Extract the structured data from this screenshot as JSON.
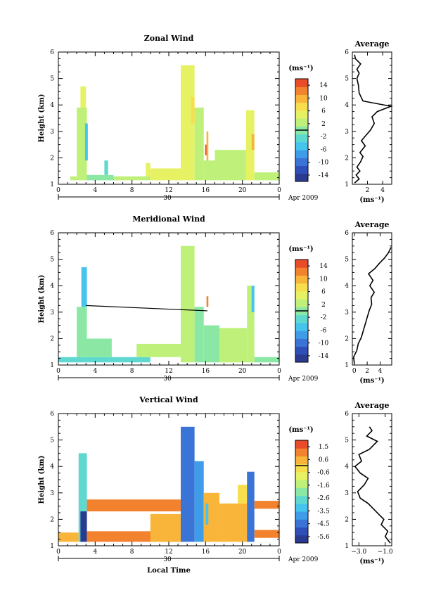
{
  "figure": {
    "x_axis_label": "Local Time",
    "date_label": "Apr 2009",
    "day_label": "30",
    "y_axis_label": "Height (km)",
    "unit_label": "(ms⁻¹)",
    "average_title": "Average"
  },
  "chart_data": [
    {
      "type": "heatmap",
      "title": "Zonal Wind",
      "xlabel": "",
      "ylabel": "Height (km)",
      "x_ticks": [
        "0",
        "4",
        "8",
        "12",
        "16",
        "20",
        "0"
      ],
      "x_tick_values": [
        0,
        4,
        8,
        12,
        16,
        20,
        24
      ],
      "y_ticks": [
        "1",
        "2",
        "3",
        "4",
        "5",
        "6"
      ],
      "xlim": [
        0,
        24
      ],
      "ylim": [
        1,
        6
      ],
      "colorbar": {
        "label": "(ms⁻¹)",
        "ticks": [
          "14",
          "10",
          "6",
          "2",
          "-2",
          "-6",
          "-10",
          "-14"
        ],
        "range": [
          -16,
          16
        ]
      },
      "blocks": [
        {
          "t0": 1.3,
          "t1": 2.0,
          "h0": 1.15,
          "h1": 1.3,
          "v": 2
        },
        {
          "t0": 2.0,
          "t1": 3.1,
          "h0": 1.15,
          "h1": 3.9,
          "v": 3
        },
        {
          "t0": 2.4,
          "t1": 3.0,
          "h0": 3.9,
          "h1": 4.7,
          "v": 4
        },
        {
          "t0": 2.9,
          "t1": 3.2,
          "h0": 1.9,
          "h1": 3.3,
          "v": -6
        },
        {
          "t0": 3.1,
          "t1": 6.0,
          "h0": 1.15,
          "h1": 1.35,
          "v": 1
        },
        {
          "t0": 5.0,
          "t1": 5.4,
          "h0": 1.35,
          "h1": 1.9,
          "v": -2
        },
        {
          "t0": 6.0,
          "t1": 10.0,
          "h0": 1.15,
          "h1": 1.3,
          "v": 3
        },
        {
          "t0": 9.5,
          "t1": 10.0,
          "h0": 1.3,
          "h1": 1.8,
          "v": 4
        },
        {
          "t0": 10.0,
          "t1": 13.3,
          "h0": 1.15,
          "h1": 1.6,
          "v": 4
        },
        {
          "t0": 13.3,
          "t1": 14.8,
          "h0": 1.15,
          "h1": 5.5,
          "v": 4
        },
        {
          "t0": 14.8,
          "t1": 15.8,
          "h0": 1.15,
          "h1": 3.9,
          "v": 3
        },
        {
          "t0": 14.4,
          "t1": 14.8,
          "h0": 3.3,
          "h1": 4.3,
          "v": 7
        },
        {
          "t0": 15.8,
          "t1": 17.0,
          "h0": 1.15,
          "h1": 1.9,
          "v": 3
        },
        {
          "t0": 15.95,
          "t1": 16.2,
          "h0": 2.1,
          "h1": 2.5,
          "v": 14
        },
        {
          "t0": 16.1,
          "t1": 16.3,
          "h0": 1.9,
          "h1": 3.0,
          "v": 10
        },
        {
          "t0": 17.0,
          "t1": 20.4,
          "h0": 1.15,
          "h1": 2.3,
          "v": 3
        },
        {
          "t0": 20.4,
          "t1": 21.3,
          "h0": 1.15,
          "h1": 3.8,
          "v": 4
        },
        {
          "t0": 21.0,
          "t1": 21.3,
          "h0": 2.3,
          "h1": 2.9,
          "v": 9
        },
        {
          "t0": 21.3,
          "t1": 24.0,
          "h0": 1.15,
          "h1": 1.45,
          "v": 3
        }
      ],
      "average_profile": {
        "title": "Average",
        "xlabel": "(ms⁻¹)",
        "x_ticks": [
          "2",
          "4"
        ],
        "x_tick_values": [
          2,
          4
        ],
        "xlim": [
          0,
          5.2
        ],
        "ylim": [
          1,
          6
        ],
        "points": [
          [
            0.3,
            1.05
          ],
          [
            0.9,
            1.2
          ],
          [
            0.5,
            1.35
          ],
          [
            1.0,
            1.5
          ],
          [
            0.6,
            1.65
          ],
          [
            1.1,
            1.85
          ],
          [
            1.4,
            2.05
          ],
          [
            1.0,
            2.2
          ],
          [
            1.7,
            2.45
          ],
          [
            1.2,
            2.65
          ],
          [
            1.8,
            2.85
          ],
          [
            2.4,
            3.05
          ],
          [
            2.9,
            3.3
          ],
          [
            2.6,
            3.55
          ],
          [
            3.3,
            3.75
          ],
          [
            5.1,
            3.95
          ],
          [
            1.4,
            4.15
          ],
          [
            0.9,
            4.45
          ],
          [
            0.8,
            4.75
          ],
          [
            0.6,
            5.0
          ],
          [
            0.9,
            5.2
          ],
          [
            0.6,
            5.35
          ],
          [
            1.1,
            5.55
          ],
          [
            0.4,
            5.75
          ],
          [
            0.3,
            5.9
          ]
        ]
      }
    },
    {
      "type": "heatmap",
      "title": "Meridional Wind",
      "xlabel": "",
      "ylabel": "Height (km)",
      "x_ticks": [
        "0",
        "4",
        "8",
        "12",
        "16",
        "20",
        "0"
      ],
      "x_tick_values": [
        0,
        4,
        8,
        12,
        16,
        20,
        24
      ],
      "y_ticks": [
        "1",
        "2",
        "3",
        "4",
        "5",
        "6"
      ],
      "xlim": [
        0,
        24
      ],
      "ylim": [
        1,
        6
      ],
      "colorbar": {
        "label": "(ms⁻¹)",
        "ticks": [
          "14",
          "10",
          "6",
          "2",
          "-2",
          "-6",
          "-10",
          "-14"
        ],
        "range": [
          -16,
          16
        ]
      },
      "blocks": [
        {
          "t0": 0.0,
          "t1": 10.0,
          "h0": 1.1,
          "h1": 1.3,
          "v": -3
        },
        {
          "t0": 2.0,
          "t1": 3.1,
          "h0": 1.3,
          "h1": 3.2,
          "v": -1
        },
        {
          "t0": 2.5,
          "t1": 3.1,
          "h0": 3.2,
          "h1": 4.7,
          "v": -6
        },
        {
          "t0": 3.1,
          "t1": 5.8,
          "h0": 1.3,
          "h1": 2.0,
          "v": 0
        },
        {
          "t0": 8.5,
          "t1": 13.3,
          "h0": 1.3,
          "h1": 1.8,
          "v": 2
        },
        {
          "t0": 13.3,
          "t1": 14.8,
          "h0": 1.1,
          "h1": 5.5,
          "v": 3
        },
        {
          "t0": 14.8,
          "t1": 15.8,
          "h0": 1.1,
          "h1": 3.2,
          "v": 0
        },
        {
          "t0": 15.8,
          "t1": 17.5,
          "h0": 1.1,
          "h1": 2.5,
          "v": 1
        },
        {
          "t0": 16.1,
          "t1": 16.3,
          "h0": 3.2,
          "h1": 3.6,
          "v": 12
        },
        {
          "t0": 17.5,
          "t1": 20.5,
          "h0": 1.1,
          "h1": 2.4,
          "v": 2
        },
        {
          "t0": 20.5,
          "t1": 21.3,
          "h0": 1.1,
          "h1": 4.0,
          "v": 3
        },
        {
          "t0": 21.0,
          "t1": 21.3,
          "h0": 3.0,
          "h1": 4.0,
          "v": -5
        },
        {
          "t0": 21.3,
          "t1": 24.0,
          "h0": 1.1,
          "h1": 1.3,
          "v": -1
        }
      ],
      "trend_line": [
        [
          3.0,
          3.25
        ],
        [
          16.2,
          3.05
        ]
      ],
      "average_profile": {
        "title": "Average",
        "xlabel": "(ms⁻¹)",
        "x_ticks": [
          "0",
          "2",
          "4"
        ],
        "x_tick_values": [
          0,
          2,
          4
        ],
        "xlim": [
          -0.3,
          5.8
        ],
        "ylim": [
          1,
          6
        ],
        "points": [
          [
            0.0,
            1.05
          ],
          [
            -0.1,
            1.3
          ],
          [
            0.4,
            1.55
          ],
          [
            0.6,
            1.8
          ],
          [
            1.1,
            2.05
          ],
          [
            1.4,
            2.3
          ],
          [
            1.7,
            2.55
          ],
          [
            2.0,
            2.8
          ],
          [
            2.3,
            3.05
          ],
          [
            2.7,
            3.3
          ],
          [
            2.6,
            3.55
          ],
          [
            3.1,
            3.75
          ],
          [
            2.4,
            4.0
          ],
          [
            2.9,
            4.2
          ],
          [
            2.2,
            4.45
          ],
          [
            3.2,
            4.65
          ],
          [
            3.9,
            4.85
          ],
          [
            4.7,
            5.05
          ],
          [
            5.3,
            5.25
          ],
          [
            5.7,
            5.45
          ]
        ]
      }
    },
    {
      "type": "heatmap",
      "title": "Vertical Wind",
      "xlabel": "Local Time",
      "ylabel": "Height (km)",
      "x_ticks": [
        "0",
        "4",
        "8",
        "12",
        "16",
        "20",
        "0"
      ],
      "x_tick_values": [
        0,
        4,
        8,
        12,
        16,
        20,
        24
      ],
      "y_ticks": [
        "1",
        "2",
        "3",
        "4",
        "5",
        "6"
      ],
      "xlim": [
        0,
        24
      ],
      "ylim": [
        1,
        6
      ],
      "colorbar": {
        "label": "(ms⁻¹)",
        "ticks": [
          "1.5",
          "0.6",
          "-0.6",
          "-1.6",
          "-2.6",
          "-3.5",
          "-4.5",
          "-5.6"
        ],
        "range": [
          -6.1,
          2.0
        ]
      },
      "blocks": [
        {
          "t0": 0.0,
          "t1": 2.2,
          "h0": 1.15,
          "h1": 1.5,
          "v": 0.6
        },
        {
          "t0": 2.2,
          "t1": 3.1,
          "h0": 1.15,
          "h1": 4.5,
          "v": -2.6
        },
        {
          "t0": 2.4,
          "t1": 3.1,
          "h0": 1.15,
          "h1": 2.3,
          "v": -5.5
        },
        {
          "t0": 3.1,
          "t1": 13.3,
          "h0": 1.15,
          "h1": 1.55,
          "v": 0.8
        },
        {
          "t0": 3.1,
          "t1": 13.3,
          "h0": 2.3,
          "h1": 2.75,
          "v": 0.8
        },
        {
          "t0": 10.0,
          "t1": 13.3,
          "h0": 1.15,
          "h1": 2.2,
          "v": 0.3
        },
        {
          "t0": 13.3,
          "t1": 14.8,
          "h0": 1.15,
          "h1": 5.5,
          "v": -4.4
        },
        {
          "t0": 14.8,
          "t1": 15.8,
          "h0": 1.15,
          "h1": 4.2,
          "v": -3.8
        },
        {
          "t0": 15.8,
          "t1": 17.5,
          "h0": 1.15,
          "h1": 3.0,
          "v": 0.4
        },
        {
          "t0": 16.0,
          "t1": 16.3,
          "h0": 1.8,
          "h1": 2.6,
          "v": -3.0
        },
        {
          "t0": 17.5,
          "t1": 20.5,
          "h0": 1.15,
          "h1": 2.6,
          "v": 0.6
        },
        {
          "t0": 19.5,
          "t1": 20.5,
          "h0": 2.6,
          "h1": 3.3,
          "v": 0.0
        },
        {
          "t0": 20.5,
          "t1": 21.3,
          "h0": 1.15,
          "h1": 3.8,
          "v": -4.8
        },
        {
          "t0": 21.3,
          "t1": 24.0,
          "h0": 1.3,
          "h1": 1.6,
          "v": 0.9
        },
        {
          "t0": 21.3,
          "t1": 24.0,
          "h0": 2.4,
          "h1": 2.7,
          "v": 0.9
        }
      ],
      "average_profile": {
        "title": "Average",
        "xlabel": "(ms⁻¹)",
        "x_ticks": [
          "−3.0",
          "−1.0"
        ],
        "x_tick_values": [
          -3.0,
          -1.0
        ],
        "xlim": [
          -3.5,
          -0.5
        ],
        "ylim": [
          1,
          6
        ],
        "points": [
          [
            -0.6,
            1.1
          ],
          [
            -1.0,
            1.35
          ],
          [
            -0.8,
            1.55
          ],
          [
            -1.3,
            1.8
          ],
          [
            -1.1,
            2.0
          ],
          [
            -1.5,
            2.2
          ],
          [
            -1.9,
            2.4
          ],
          [
            -2.3,
            2.6
          ],
          [
            -2.9,
            2.8
          ],
          [
            -3.1,
            3.05
          ],
          [
            -2.6,
            3.3
          ],
          [
            -2.3,
            3.55
          ],
          [
            -2.9,
            3.75
          ],
          [
            -3.3,
            4.0
          ],
          [
            -2.8,
            4.2
          ],
          [
            -3.0,
            4.45
          ],
          [
            -2.2,
            4.65
          ],
          [
            -1.6,
            4.95
          ],
          [
            -2.4,
            5.15
          ],
          [
            -2.0,
            5.35
          ],
          [
            -2.2,
            5.5
          ]
        ]
      }
    }
  ]
}
